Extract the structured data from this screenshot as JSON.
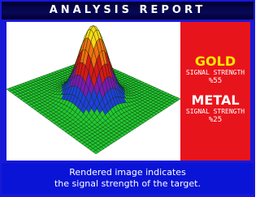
{
  "header": {
    "title": "ANALYSIS REPORT"
  },
  "results": [
    {
      "label": "GOLD",
      "caption": "SIGNAL STRENGTH",
      "value": "%55"
    },
    {
      "label": "METAL",
      "caption": "SIGNAL STRENGTH",
      "value": "%25"
    }
  ],
  "footer": {
    "lines": [
      "Rendered image indicates",
      "the signal strength of the target."
    ]
  }
}
